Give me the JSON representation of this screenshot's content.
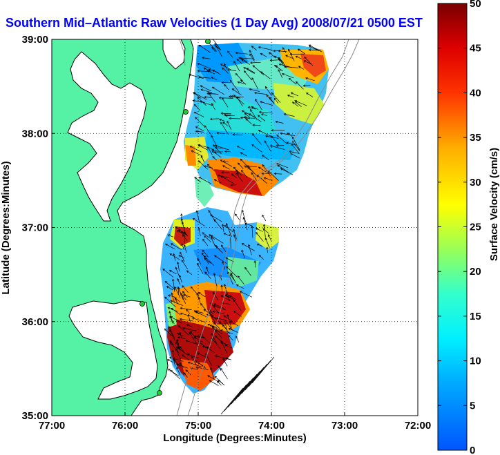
{
  "title": "Southern Mid–Atlantic Raw Velocities (1 Day Avg) 2008/07/21 0500 EST",
  "colors": {
    "land": "#55f2a5",
    "ocean": "#ffffff",
    "title": "#0000ff",
    "grid": "#000000",
    "isobath": "#8a8a8a",
    "station": "#22cc33"
  },
  "map": {
    "xlabel": "Longitude (Degrees:Minutes)",
    "ylabel": "Latitude (Degrees:Minutes)",
    "x_ticks": [
      {
        "value": -77,
        "label": "77:00"
      },
      {
        "value": -76,
        "label": "76:00"
      },
      {
        "value": -75,
        "label": "75:00"
      },
      {
        "value": -74,
        "label": "74:00"
      },
      {
        "value": -73,
        "label": "73:00"
      },
      {
        "value": -72,
        "label": "72:00"
      }
    ],
    "y_ticks": [
      {
        "value": 35,
        "label": "35:00"
      },
      {
        "value": 36,
        "label": "36:00"
      },
      {
        "value": 37,
        "label": "37:00"
      },
      {
        "value": 38,
        "label": "38:00"
      },
      {
        "value": 39,
        "label": "39:00"
      }
    ],
    "xlim": [
      -77,
      -72
    ],
    "ylim": [
      35,
      39
    ],
    "grid": "dotted"
  },
  "colorbar": {
    "label": "Surface Velocity (cm/s)",
    "min": 0,
    "max": 50,
    "units": "cm/s",
    "ticks": [
      {
        "value": 0,
        "label": "0"
      },
      {
        "value": 5,
        "label": "5"
      },
      {
        "value": 10,
        "label": "10"
      },
      {
        "value": 15,
        "label": "15"
      },
      {
        "value": 20,
        "label": "20"
      },
      {
        "value": 25,
        "label": "25"
      },
      {
        "value": 30,
        "label": "30"
      },
      {
        "value": 35,
        "label": "35"
      },
      {
        "value": 40,
        "label": "40"
      },
      {
        "value": 45,
        "label": "45"
      },
      {
        "value": 50,
        "label": "50"
      }
    ]
  }
}
